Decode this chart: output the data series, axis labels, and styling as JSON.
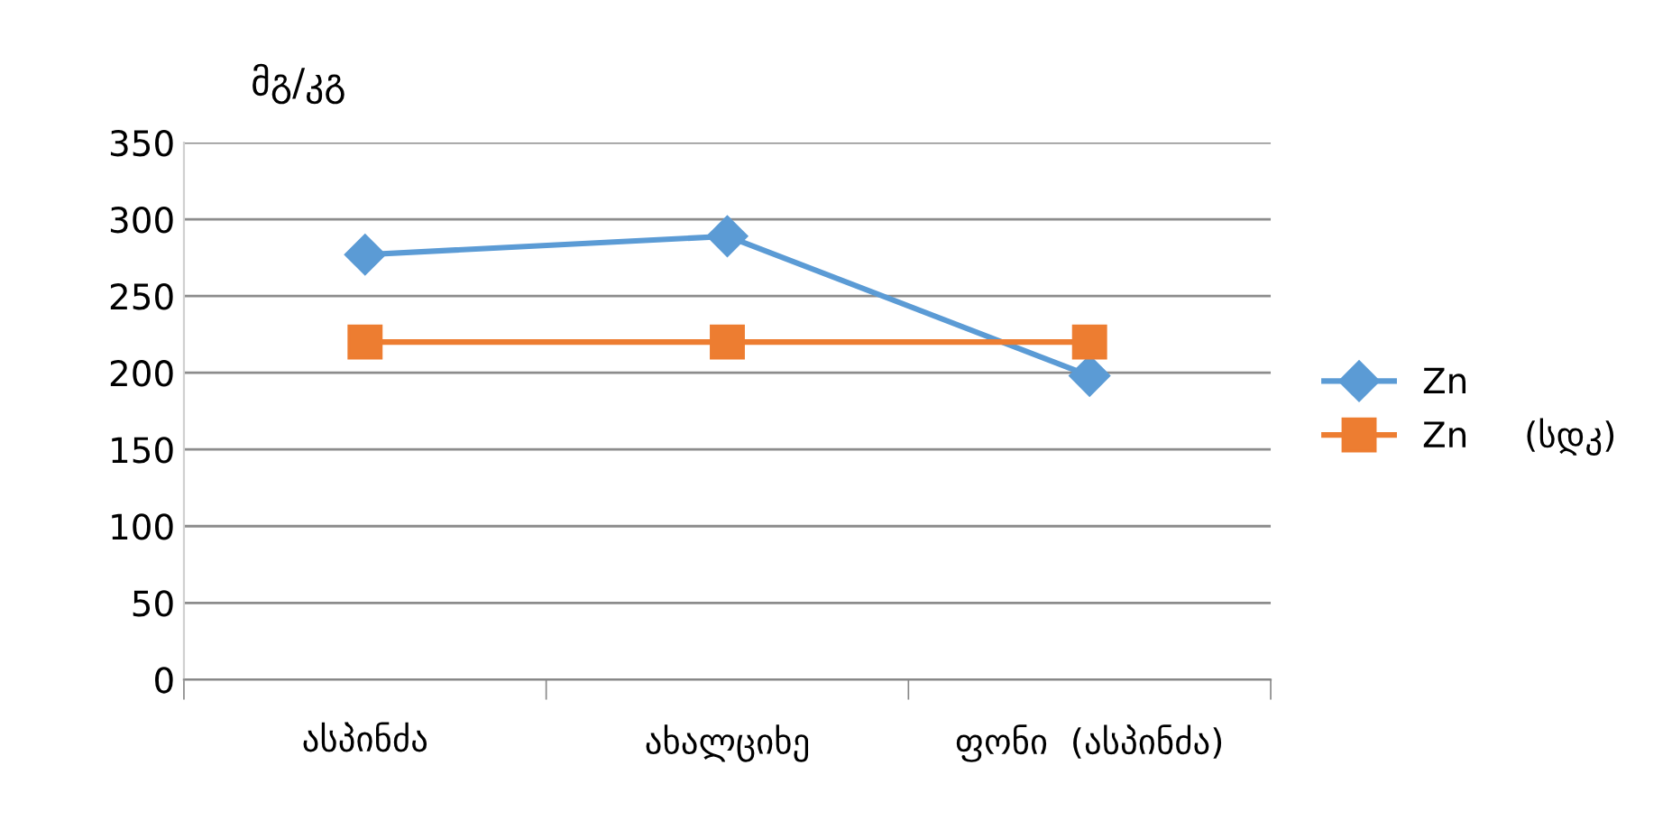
{
  "chart_data": {
    "type": "line",
    "ylabel": "მგ/კგ",
    "categories": [
      "ასპინძა",
      "ახალციხე",
      "ფონი  (ასპინძა)"
    ],
    "series": [
      {
        "name": "Zn",
        "color": "#5b9bd5",
        "values": [
          277,
          289,
          198
        ],
        "marker": "diamond"
      },
      {
        "name": "Zn     (სდკ)",
        "color": "#ed7d31",
        "values": [
          220,
          220,
          220
        ],
        "marker": "square"
      }
    ],
    "ylim": [
      0,
      350
    ],
    "yticks": [
      0,
      50,
      100,
      150,
      200,
      250,
      300,
      350
    ],
    "grid": "y",
    "legend": "right",
    "line_style": "solid"
  }
}
